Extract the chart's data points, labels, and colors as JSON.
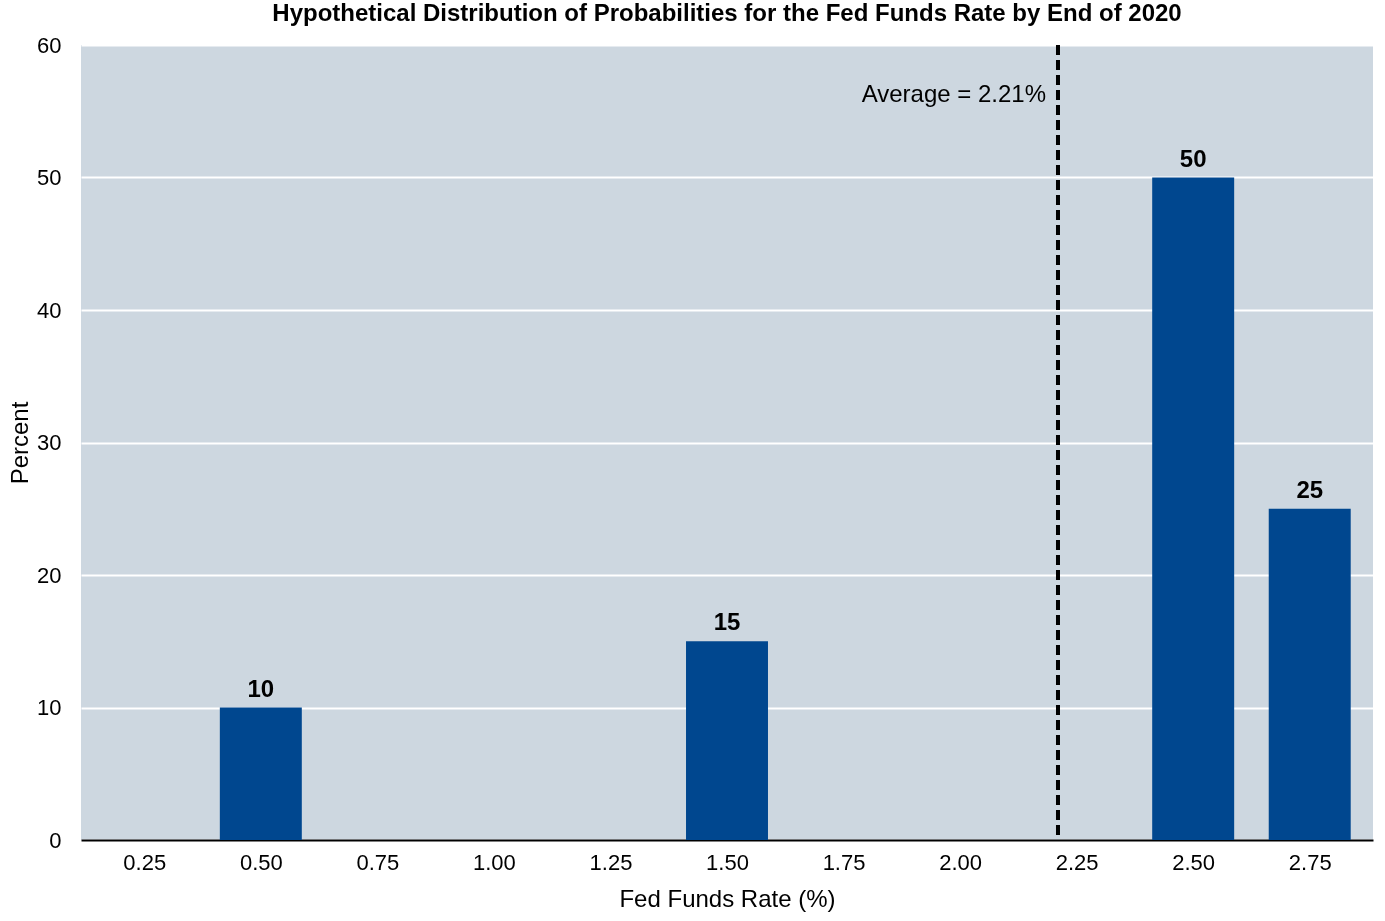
{
  "chart_data": {
    "type": "bar",
    "title": "Hypothetical Distribution of Probabilities for the Fed Funds Rate by End of 2020",
    "xlabel": "Fed Funds Rate (%)",
    "ylabel": "Percent",
    "x": [
      0.25,
      0.5,
      0.75,
      1.0,
      1.25,
      1.5,
      1.75,
      2.0,
      2.25,
      2.5,
      2.75
    ],
    "values": [
      0,
      10,
      0,
      0,
      0,
      15,
      0,
      0,
      0,
      50,
      25
    ],
    "value_labels": [
      null,
      "10",
      null,
      null,
      null,
      "15",
      null,
      null,
      null,
      "50",
      "25"
    ],
    "color": "#00478f",
    "xlim": [
      0.125,
      2.875
    ],
    "xticks": [
      {
        "value": 0.25,
        "label": "0.25"
      },
      {
        "value": 0.5,
        "label": "0.50"
      },
      {
        "value": 0.75,
        "label": "0.75"
      },
      {
        "value": 1.0,
        "label": "1.00"
      },
      {
        "value": 1.25,
        "label": "1.25"
      },
      {
        "value": 1.5,
        "label": "1.50"
      },
      {
        "value": 1.75,
        "label": "1.75"
      },
      {
        "value": 2.0,
        "label": "2.00"
      },
      {
        "value": 2.25,
        "label": "2.25"
      },
      {
        "value": 2.5,
        "label": "2.50"
      },
      {
        "value": 2.75,
        "label": "2.75"
      }
    ],
    "ylim": [
      0,
      60
    ],
    "yticks": [
      0,
      10,
      20,
      30,
      40,
      50,
      60
    ],
    "grid": "y",
    "ref_lines": [
      {
        "axis": "x",
        "value": 2.21,
        "label": "Average = 2.21%",
        "color": "#000000",
        "line_style": "dashed"
      }
    ]
  }
}
